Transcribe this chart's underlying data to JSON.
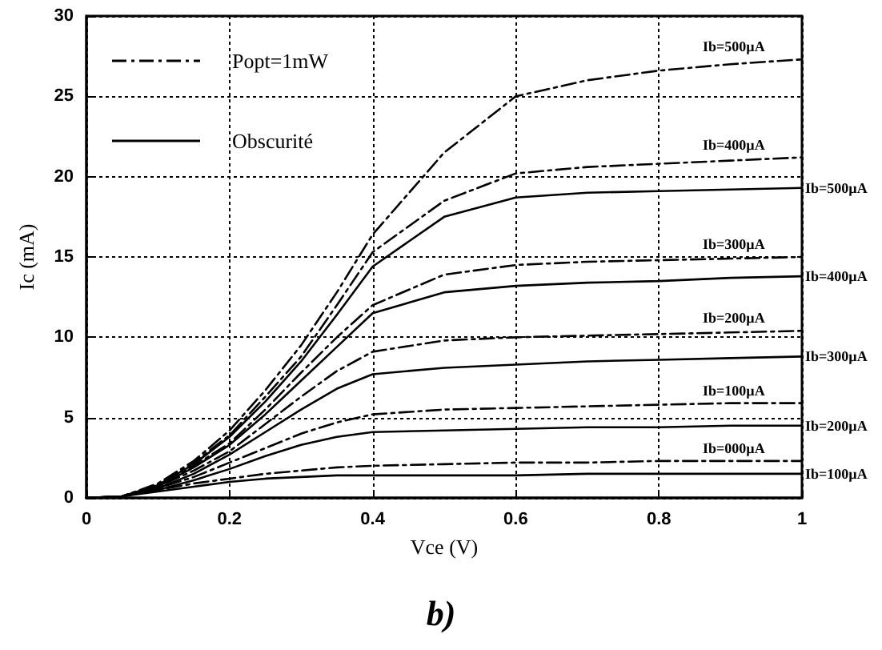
{
  "chart_data": {
    "type": "line",
    "xlabel": "Vce (V)",
    "ylabel": "Ic (mA)",
    "x": [
      0,
      0.05,
      0.1,
      0.15,
      0.2,
      0.25,
      0.3,
      0.35,
      0.4,
      0.5,
      0.6,
      0.7,
      0.8,
      0.9,
      1
    ],
    "series": [
      {
        "name": "Ib=000µA",
        "color": "#000000",
        "line_style": "dashed",
        "values": [
          0,
          0.1,
          0.5,
          0.9,
          1.2,
          1.5,
          1.7,
          1.9,
          2.0,
          2.1,
          2.2,
          2.2,
          2.3,
          2.3,
          2.3
        ]
      },
      {
        "name": "Ib=100µA",
        "color": "#000000",
        "line_style": "dashed",
        "values": [
          0,
          0.1,
          0.6,
          1.3,
          2.2,
          3.1,
          4.0,
          4.7,
          5.2,
          5.5,
          5.6,
          5.7,
          5.8,
          5.9,
          5.9
        ]
      },
      {
        "name": "Ib=200µA",
        "color": "#000000",
        "line_style": "dashed",
        "values": [
          0,
          0.1,
          0.7,
          1.7,
          2.9,
          4.6,
          6.3,
          7.9,
          9.1,
          9.8,
          10.0,
          10.1,
          10.2,
          10.3,
          10.4
        ]
      },
      {
        "name": "Ib=300µA",
        "color": "#000000",
        "line_style": "dashed",
        "values": [
          0,
          0.1,
          0.8,
          2.0,
          3.4,
          5.5,
          7.8,
          10.0,
          12.0,
          13.9,
          14.5,
          14.7,
          14.8,
          14.9,
          15.0
        ]
      },
      {
        "name": "Ib=400µA",
        "color": "#000000",
        "line_style": "dashed",
        "values": [
          0,
          0.1,
          0.8,
          2.2,
          3.9,
          6.3,
          8.8,
          12.0,
          15.3,
          18.5,
          20.2,
          20.6,
          20.8,
          21.0,
          21.2
        ]
      },
      {
        "name": "Ib=500µA",
        "color": "#000000",
        "line_style": "dashed",
        "values": [
          0,
          0.1,
          0.9,
          2.3,
          4.2,
          6.7,
          9.5,
          12.8,
          16.4,
          21.5,
          25.0,
          26.0,
          26.6,
          27.0,
          27.3
        ]
      },
      {
        "name": "Ib=100µA",
        "color": "#000000",
        "line_style": "solid",
        "values": [
          0,
          0.1,
          0.4,
          0.7,
          1.0,
          1.2,
          1.3,
          1.4,
          1.4,
          1.4,
          1.4,
          1.5,
          1.5,
          1.5,
          1.5
        ]
      },
      {
        "name": "Ib=200µA",
        "color": "#000000",
        "line_style": "solid",
        "values": [
          0,
          0.1,
          0.5,
          1.1,
          1.8,
          2.6,
          3.3,
          3.8,
          4.1,
          4.2,
          4.3,
          4.4,
          4.4,
          4.5,
          4.5
        ]
      },
      {
        "name": "Ib=300µA",
        "color": "#000000",
        "line_style": "solid",
        "values": [
          0,
          0.1,
          0.6,
          1.5,
          2.7,
          4.1,
          5.5,
          6.8,
          7.7,
          8.1,
          8.3,
          8.5,
          8.6,
          8.7,
          8.8
        ]
      },
      {
        "name": "Ib=400µA",
        "color": "#000000",
        "line_style": "solid",
        "values": [
          0,
          0.1,
          0.7,
          1.9,
          3.3,
          5.2,
          7.3,
          9.4,
          11.5,
          12.8,
          13.2,
          13.4,
          13.5,
          13.7,
          13.8
        ]
      },
      {
        "name": "Ib=500µA",
        "color": "#000000",
        "line_style": "solid",
        "values": [
          0,
          0.1,
          0.8,
          2.1,
          3.8,
          6.0,
          8.5,
          11.4,
          14.4,
          17.5,
          18.7,
          19.0,
          19.1,
          19.2,
          19.3
        ]
      }
    ],
    "xlim": [
      0,
      1
    ],
    "xticks": [
      0,
      0.2,
      0.4,
      0.6,
      0.8,
      1
    ],
    "ylim": [
      0,
      30
    ],
    "yticks": [
      0,
      5,
      10,
      15,
      20,
      25,
      30
    ],
    "grid": true,
    "marker": "none",
    "annotations": [
      "Popt=1mW",
      "Obscurité",
      "b)"
    ]
  }
}
